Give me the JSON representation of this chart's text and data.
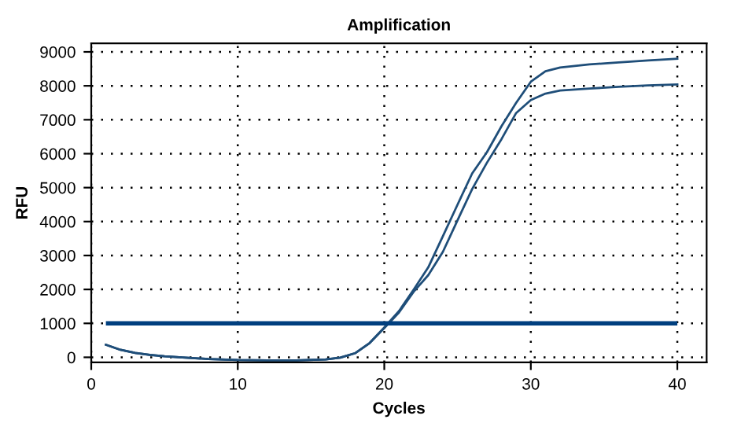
{
  "chart_data": {
    "type": "line",
    "title": "Amplification",
    "xlabel": "Cycles",
    "ylabel": "RFU",
    "x": [
      1,
      2,
      3,
      4,
      5,
      6,
      8,
      10,
      12,
      14,
      16,
      17,
      18,
      19,
      20,
      21,
      22,
      23,
      24,
      25,
      26,
      27,
      28,
      29,
      30,
      31,
      32,
      34,
      36,
      38,
      40
    ],
    "series": [
      {
        "color": "#1f4e79",
        "values": [
          370,
          220,
          130,
          70,
          30,
          0,
          -50,
          -80,
          -90,
          -90,
          -60,
          -10,
          120,
          420,
          880,
          1360,
          1990,
          2650,
          3570,
          4500,
          5420,
          6040,
          6810,
          7500,
          8120,
          8430,
          8540,
          8630,
          8690,
          8750,
          8800
        ]
      },
      {
        "color": "#1f4e79",
        "values": [
          370,
          220,
          130,
          70,
          30,
          0,
          -50,
          -80,
          -90,
          -90,
          -60,
          -10,
          120,
          420,
          860,
          1320,
          1930,
          2420,
          3110,
          4040,
          4960,
          5730,
          6430,
          7200,
          7580,
          7770,
          7860,
          7920,
          7970,
          8010,
          8040
        ]
      }
    ],
    "ref_lines": [
      {
        "axis": "y",
        "value": 1000,
        "color": "#003f7f"
      }
    ],
    "xlim": [
      0,
      42
    ],
    "ylim": [
      -150,
      9250
    ],
    "xticks": [
      0,
      10,
      20,
      30,
      40
    ],
    "yticks": [
      0,
      1000,
      2000,
      3000,
      4000,
      5000,
      6000,
      7000,
      8000,
      9000
    ],
    "grid": true,
    "marker": "none",
    "line_style": "solid",
    "legend": false
  }
}
